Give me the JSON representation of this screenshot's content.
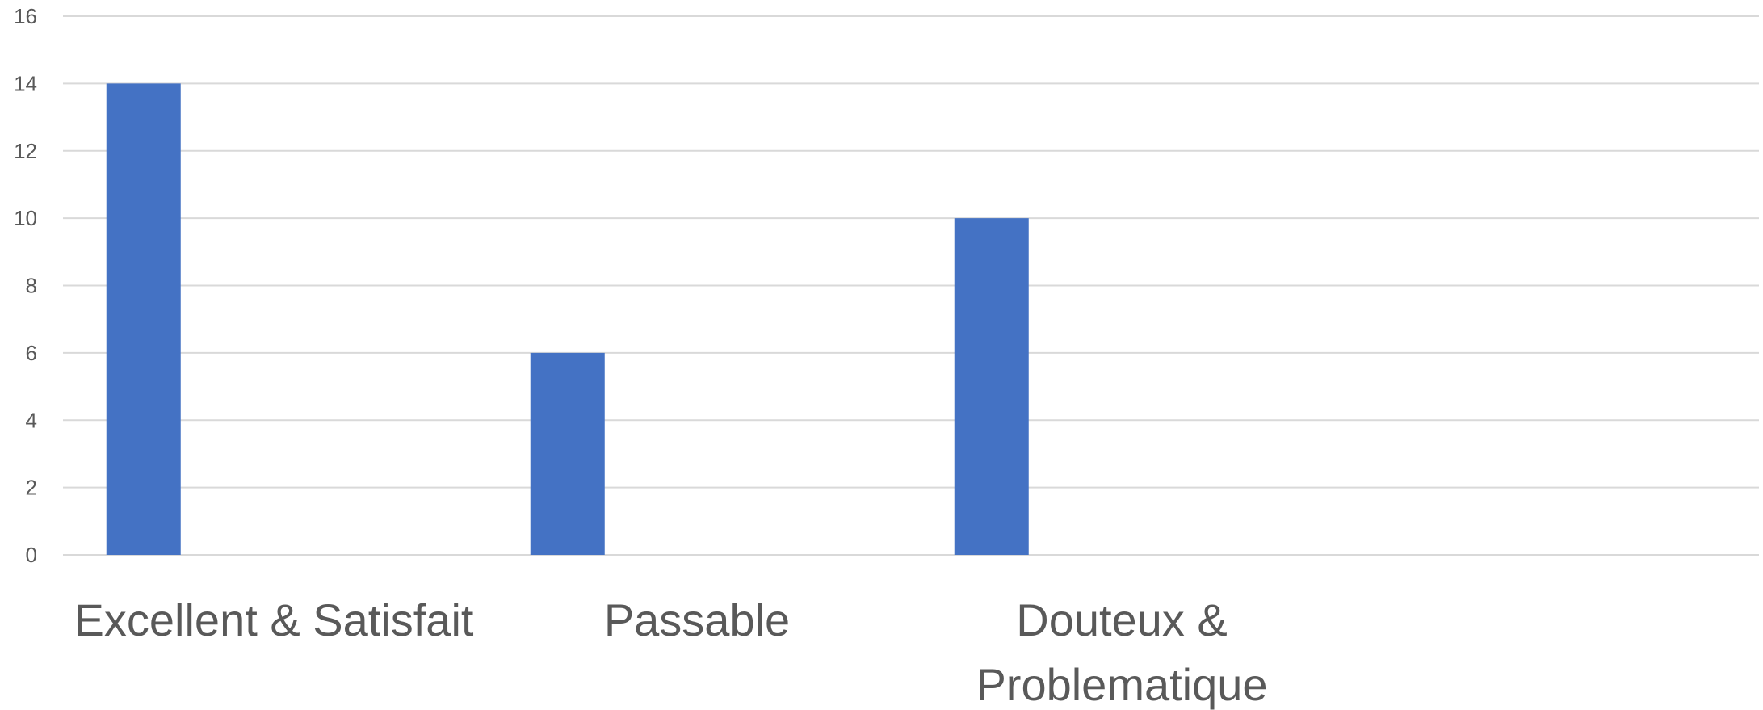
{
  "chart_data": {
    "type": "bar",
    "title": "",
    "xlabel": "",
    "ylabel": "",
    "categories": [
      "Excellent & Satisfait",
      "Passable",
      "Douteux & Problematique",
      ""
    ],
    "category_label_lines": [
      [
        "Excellent & Satisfait"
      ],
      [
        "Passable"
      ],
      [
        "Douteux &",
        "Problematique"
      ],
      []
    ],
    "series": [
      {
        "values": [
          14,
          6,
          10,
          null
        ]
      }
    ],
    "ylim": [
      0,
      16
    ],
    "yticks": [
      0,
      2,
      4,
      6,
      8,
      10,
      12,
      14,
      16
    ],
    "grid": true,
    "legend": "none",
    "bar_color": "#4472c4",
    "gridline_color": "#d9d9d9",
    "text_color": "#595959"
  }
}
